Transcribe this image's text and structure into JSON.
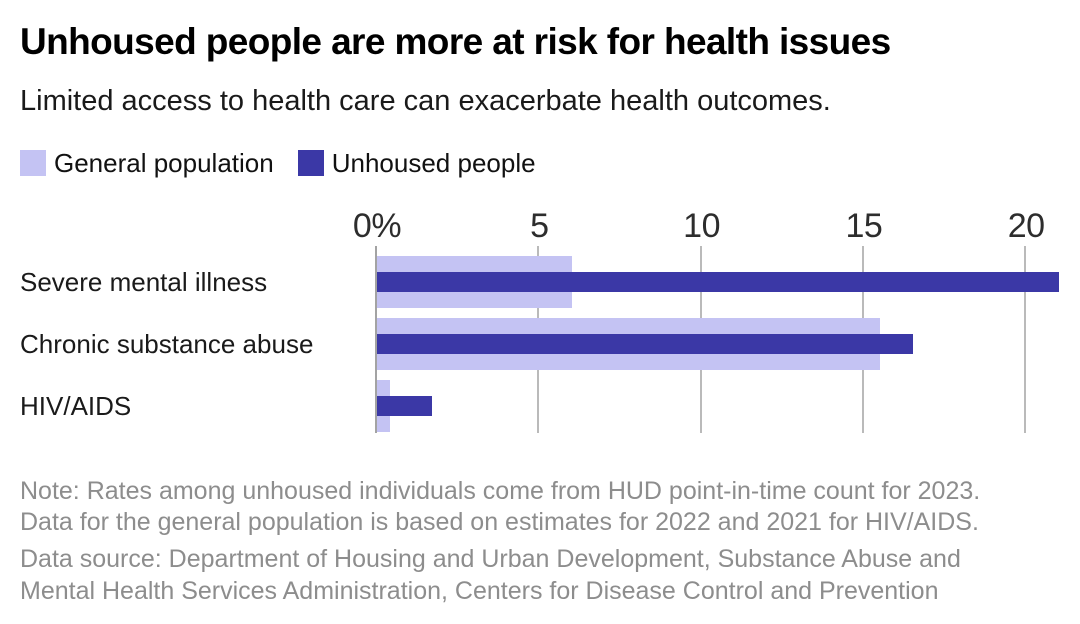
{
  "header": {
    "title": "Unhoused people are more at risk for health issues",
    "subtitle": "Limited access to health care can exacerbate health outcomes."
  },
  "legend": {
    "items": [
      {
        "label": "General population",
        "color": "#c4c3f3"
      },
      {
        "label": "Unhoused people",
        "color": "#3b38a6"
      }
    ]
  },
  "chart_data": {
    "type": "bar",
    "orientation": "horizontal",
    "title": "Unhoused people are more at risk for health issues",
    "subtitle": "Limited access to health care can exacerbate health outcomes.",
    "categories": [
      "Severe mental illness",
      "Chronic substance abuse",
      "HIV/AIDS"
    ],
    "series": [
      {
        "name": "General population",
        "color": "#c4c3f3",
        "values": [
          6,
          15.5,
          0.4
        ]
      },
      {
        "name": "Unhoused people",
        "color": "#3b38a6",
        "values": [
          21,
          16.5,
          1.7
        ]
      }
    ],
    "value_unit": "%",
    "x_ticks": [
      {
        "value": 0,
        "label": "0%"
      },
      {
        "value": 5,
        "label": "5"
      },
      {
        "value": 10,
        "label": "10"
      },
      {
        "value": 15,
        "label": "15"
      },
      {
        "value": 20,
        "label": "20"
      }
    ],
    "xlim": [
      0,
      21
    ],
    "grid": "vertical-gridlines-behind-bars",
    "legend_position": "top-left",
    "xlabel": "",
    "ylabel": ""
  },
  "notes": {
    "note_lines": [
      "Note: Rates among unhoused individuals come from HUD point-in-time count for 2023.",
      "Data for the general population is based on estimates for 2022 and 2021 for HIV/AIDS."
    ],
    "source_lines": [
      "Data source: Department of Housing and Urban Development, Substance Abuse and",
      "Mental Health Services Administration, Centers for Disease Control and Prevention"
    ]
  },
  "colors": {
    "general_population": "#c4c3f3",
    "unhoused_people": "#3b38a6",
    "gridline": "#bababa",
    "zero_line": "#a3a3a3",
    "note_text": "#8d8d8d",
    "background": "#ffffff"
  }
}
